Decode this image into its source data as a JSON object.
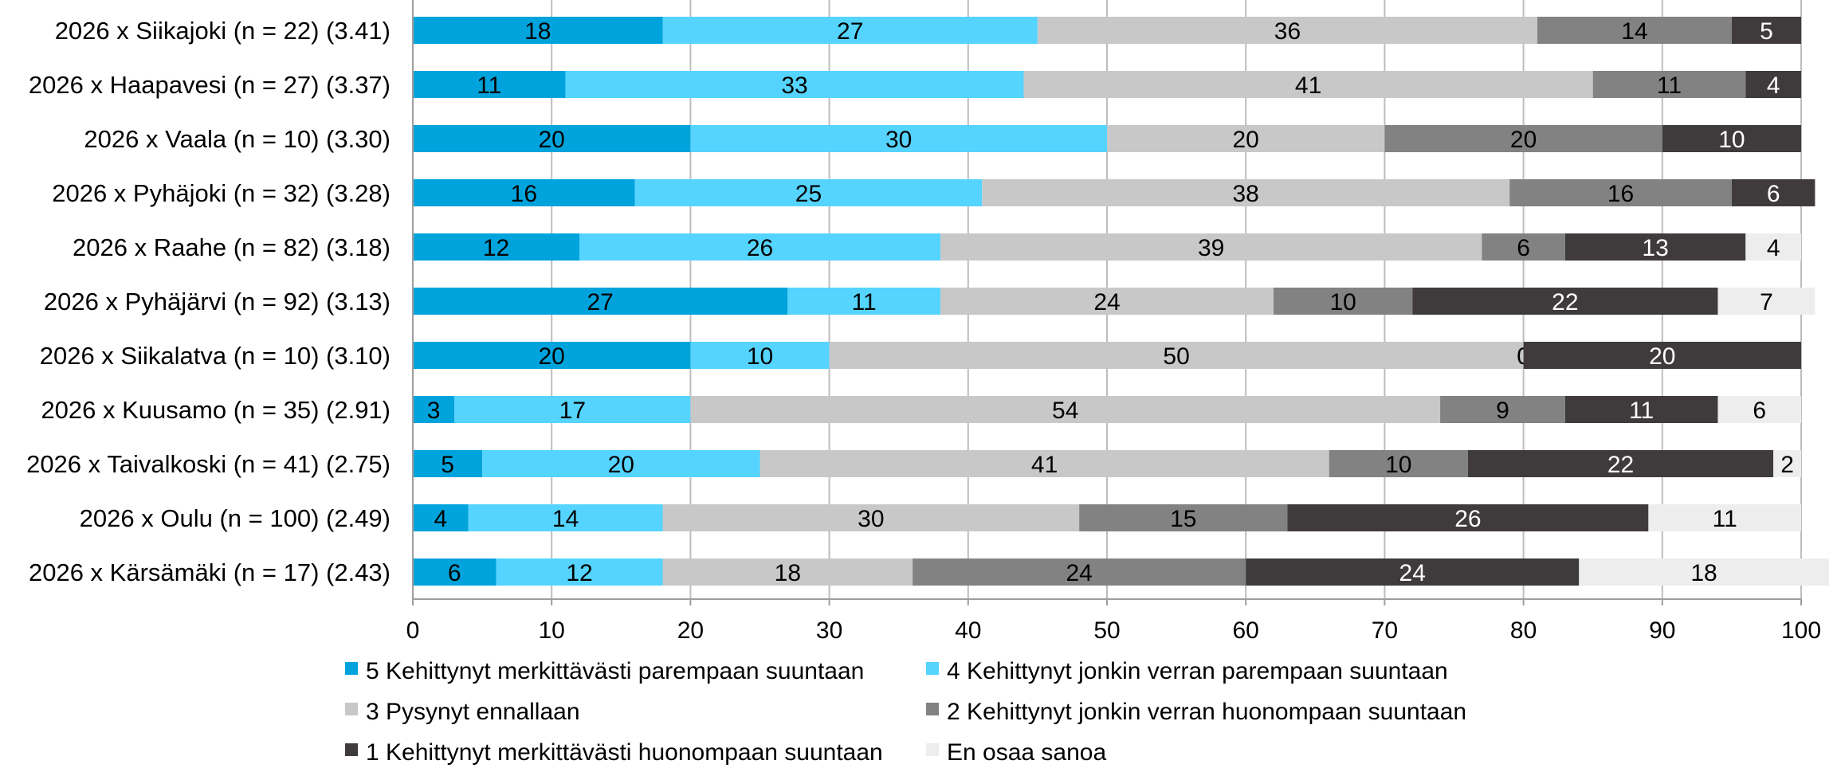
{
  "chart_data": {
    "type": "bar",
    "orientation": "horizontal",
    "stacked": true,
    "categories": [
      "2026 x Siikajoki (n = 22) (3.41)",
      "2026 x Haapavesi (n = 27) (3.37)",
      "2026 x Vaala (n = 10) (3.30)",
      "2026 x Pyhäjoki (n = 32) (3.28)",
      "2026 x Raahe (n = 82) (3.18)",
      "2026 x Pyhäjärvi (n = 92) (3.13)",
      "2026 x Siikalatva (n = 10) (3.10)",
      "2026 x Kuusamo (n = 35) (2.91)",
      "2026 x Taivalkoski (n = 41) (2.75)",
      "2026 x Oulu (n = 100) (2.49)",
      "2026 x Kärsämäki (n = 17) (2.43)"
    ],
    "series": [
      {
        "name": "5 Kehittynyt merkittävästi parempaan suuntaan",
        "color": "#00A3DC",
        "label_color": "#000000",
        "values": [
          18,
          11,
          20,
          16,
          12,
          27,
          20,
          3,
          5,
          4,
          6
        ]
      },
      {
        "name": "4 Kehittynyt jonkin verran parempaan suuntaan",
        "color": "#55D4FF",
        "label_color": "#000000",
        "values": [
          27,
          33,
          30,
          25,
          26,
          11,
          10,
          17,
          20,
          14,
          12
        ]
      },
      {
        "name": "3 Pysynyt ennallaan",
        "color": "#C8C8C8",
        "label_color": "#000000",
        "values": [
          36,
          41,
          20,
          38,
          39,
          24,
          50,
          54,
          41,
          30,
          18
        ]
      },
      {
        "name": "2 Kehittynyt jonkin verran huonompaan suuntaan",
        "color": "#828282",
        "label_color": "#000000",
        "values": [
          14,
          11,
          20,
          16,
          6,
          10,
          0,
          9,
          10,
          15,
          24
        ]
      },
      {
        "name": "1 Kehittynyt merkittävästi huonompaan suuntaan",
        "color": "#3F3B3C",
        "label_color": "#FFFFFF",
        "values": [
          5,
          4,
          10,
          6,
          13,
          22,
          20,
          11,
          22,
          26,
          24
        ]
      },
      {
        "name": "En osaa sanoa",
        "color": "#EDEDED",
        "label_color": "#000000",
        "values": [
          0,
          0,
          0,
          0,
          4,
          7,
          0,
          6,
          2,
          11,
          18
        ]
      }
    ],
    "xlim": [
      0,
      100
    ],
    "xticks": [
      "0",
      "10",
      "20",
      "30",
      "40",
      "50",
      "60",
      "70",
      "80",
      "90",
      "100"
    ],
    "grid": true,
    "legend_position": "bottom"
  }
}
